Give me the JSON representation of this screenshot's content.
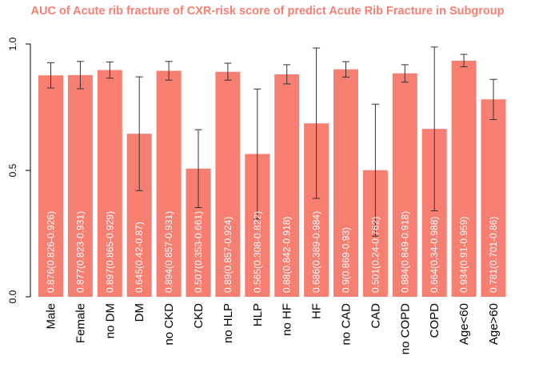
{
  "chart_data": {
    "type": "bar",
    "title": "AUC of Acute rib fracture of CXR-risk score of predict Acute Rib Fracture in Subgroup",
    "xlabel": "",
    "ylabel": "",
    "ylim": [
      0,
      1.0
    ],
    "yticks": [
      "0.0",
      "0.5",
      "1.0"
    ],
    "grid": false,
    "legend": "none",
    "categories": [
      "Male",
      "Female",
      "no DM",
      "DM",
      "no CKD",
      "CKD",
      "no HLP",
      "HLP",
      "no HF",
      "HF",
      "no CAD",
      "CAD",
      "no COPD",
      "COPD",
      "Age<60",
      "Age>60"
    ],
    "values": [
      0.876,
      0.877,
      0.897,
      0.645,
      0.894,
      0.507,
      0.89,
      0.565,
      0.88,
      0.686,
      0.9,
      0.501,
      0.884,
      0.664,
      0.934,
      0.781
    ],
    "ci_low": [
      0.826,
      0.823,
      0.865,
      0.42,
      0.857,
      0.353,
      0.857,
      0.308,
      0.842,
      0.389,
      0.869,
      0.24,
      0.849,
      0.34,
      0.91,
      0.701
    ],
    "ci_high": [
      0.926,
      0.931,
      0.929,
      0.87,
      0.931,
      0.661,
      0.924,
      0.822,
      0.918,
      0.984,
      0.93,
      0.762,
      0.918,
      0.988,
      0.959,
      0.86
    ],
    "data_labels": [
      "0.876(0.826-0.926)",
      "0.877(0.823-0.931)",
      "0.897(0.865-0.929)",
      "0.645(0.42-0.87)",
      "0.894(0.857-0.931)",
      "0.507(0.353-0.661)",
      "0.89(0.857-0.924)",
      "0.565(0.308-0.822)",
      "0.88(0.842-0.918)",
      "0.686(0.389-0.984)",
      "0.9(0.869-0.93)",
      "0.501(0.24-0.762)",
      "0.884(0.849-0.918)",
      "0.664(0.34-0.988)",
      "0.934(0.91-0.959)",
      "0.781(0.701-0.86)"
    ],
    "colors": {
      "bar": "#f77f72",
      "title": "#f77f72",
      "errorbar": "#333333",
      "axis": "#000000",
      "data_label": "#ffffff"
    }
  }
}
